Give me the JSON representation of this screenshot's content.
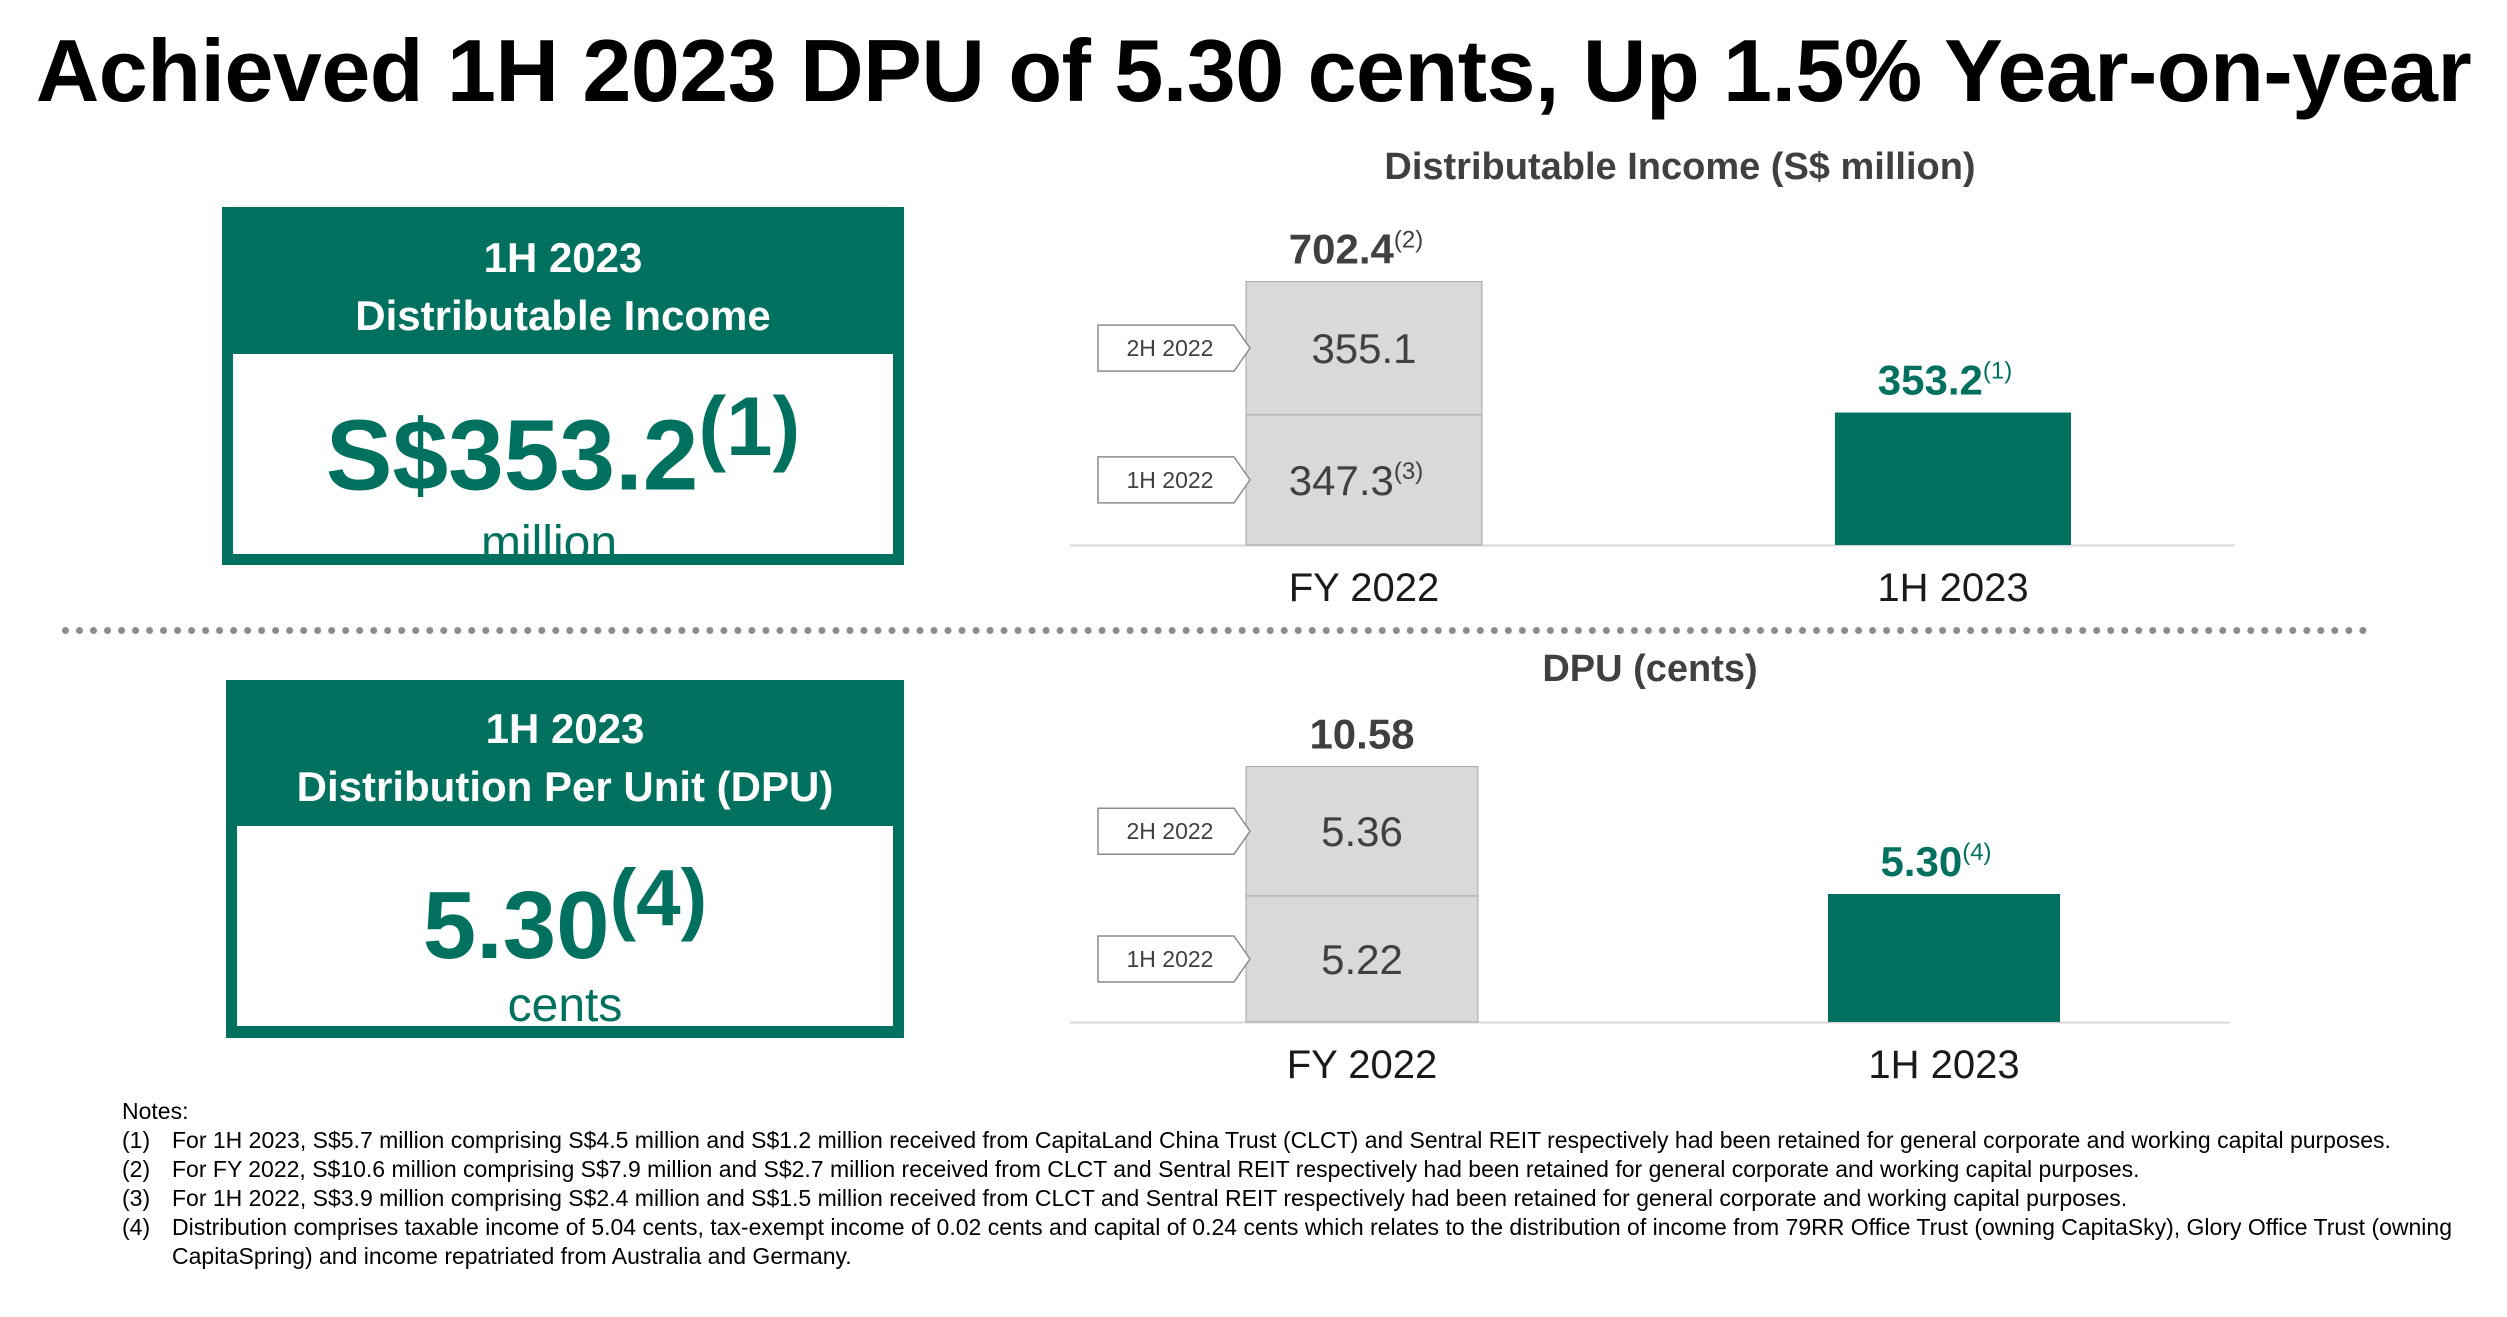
{
  "title": "Achieved 1H 2023 DPU of 5.30 cents, Up 1.5% Year-on-year",
  "colors": {
    "accent": "#00705f",
    "bar_grey": "#d9d9d9",
    "bar_grey_edge": "#a6a6a6",
    "text_grey": "#404040"
  },
  "kpi_income": {
    "period": "1H 2023",
    "label": "Distributable Income",
    "value": "S$353.2",
    "note": "(1)",
    "unit": "million"
  },
  "kpi_dpu": {
    "period": "1H 2023",
    "label": "Distribution Per Unit (DPU)",
    "value": "5.30",
    "note": "(4)",
    "unit": "cents"
  },
  "chart_data": [
    {
      "type": "bar",
      "title": "Distributable Income (S$ million)",
      "categories": [
        "FY 2022",
        "1H 2023"
      ],
      "stacked": true,
      "series": [
        {
          "name": "1H 2022",
          "values": [
            347.3,
            null
          ],
          "value_labels": [
            "347.3",
            null
          ],
          "notes": [
            "(3)",
            null
          ]
        },
        {
          "name": "2H 2022",
          "values": [
            355.1,
            null
          ],
          "value_labels": [
            "355.1",
            null
          ],
          "notes": [
            "",
            null
          ]
        },
        {
          "name": "",
          "values": [
            null,
            353.2
          ],
          "value_labels": [
            null,
            "353.2"
          ],
          "notes": [
            null,
            "(1)"
          ]
        }
      ],
      "totals": [
        {
          "value": 702.4,
          "label": "702.4",
          "note": "(2)"
        },
        null
      ],
      "ylim": [
        0,
        720
      ],
      "grid": false
    },
    {
      "type": "bar",
      "title": "DPU (cents)",
      "categories": [
        "FY 2022",
        "1H 2023"
      ],
      "stacked": true,
      "series": [
        {
          "name": "1H 2022",
          "values": [
            5.22,
            null
          ],
          "value_labels": [
            "5.22",
            null
          ],
          "notes": [
            "",
            null
          ]
        },
        {
          "name": "2H 2022",
          "values": [
            5.36,
            null
          ],
          "value_labels": [
            "5.36",
            null
          ],
          "notes": [
            "",
            null
          ]
        },
        {
          "name": "",
          "values": [
            null,
            5.3
          ],
          "value_labels": [
            null,
            "5.30"
          ],
          "notes": [
            null,
            "(4)"
          ]
        }
      ],
      "totals": [
        {
          "value": 10.58,
          "label": "10.58",
          "note": ""
        },
        null
      ],
      "ylim": [
        0,
        10.85
      ],
      "grid": false
    }
  ],
  "notes": {
    "heading": "Notes:",
    "items": [
      {
        "num": "(1)",
        "text": "For 1H 2023, S$5.7 million comprising S$4.5 million and S$1.2 million received from CapitaLand China Trust (CLCT) and Sentral REIT respectively had been retained for general corporate and working capital purposes."
      },
      {
        "num": "(2)",
        "text": "For FY 2022, S$10.6 million comprising S$7.9 million and S$2.7 million received from CLCT and Sentral REIT respectively had been retained for general corporate and working capital purposes."
      },
      {
        "num": "(3)",
        "text": "For 1H 2022, S$3.9 million comprising S$2.4 million and S$1.5 million received from CLCT and Sentral REIT respectively had been retained for general corporate and working capital purposes."
      },
      {
        "num": "(4)",
        "text": "Distribution comprises taxable income of 5.04 cents, tax-exempt income of 0.02 cents and capital of 0.24 cents which relates to the distribution of income from 79RR Office Trust (owning CapitaSky), Glory Office Trust (owning CapitaSpring) and income repatriated from Australia and Germany."
      }
    ]
  }
}
